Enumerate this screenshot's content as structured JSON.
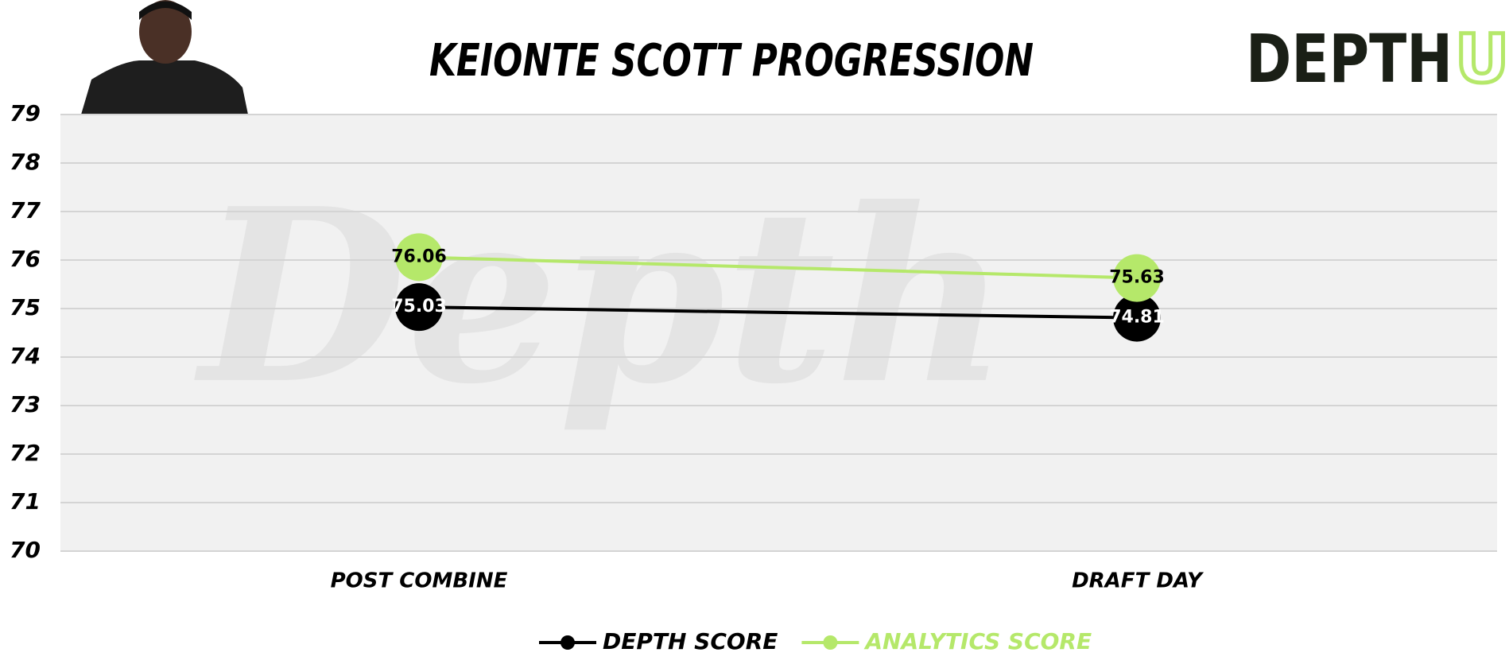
{
  "chart_data": {
    "type": "line",
    "title": "KEIONTE SCOTT PROGRESSION",
    "logo": {
      "main": "DEPTH",
      "accent": "U"
    },
    "watermark": "Depth",
    "categories": [
      "POST COMBINE",
      "DRAFT DAY"
    ],
    "series": [
      {
        "name": "DEPTH SCORE",
        "color": "#000000",
        "values": [
          75.03,
          74.81
        ]
      },
      {
        "name": "ANALYTICS SCORE",
        "color": "#b5e86a",
        "values": [
          76.06,
          75.63
        ]
      }
    ],
    "ylim": [
      70,
      79
    ],
    "yticks": [
      70,
      71,
      72,
      73,
      74,
      75,
      76,
      77,
      78,
      79
    ],
    "grid": true
  }
}
